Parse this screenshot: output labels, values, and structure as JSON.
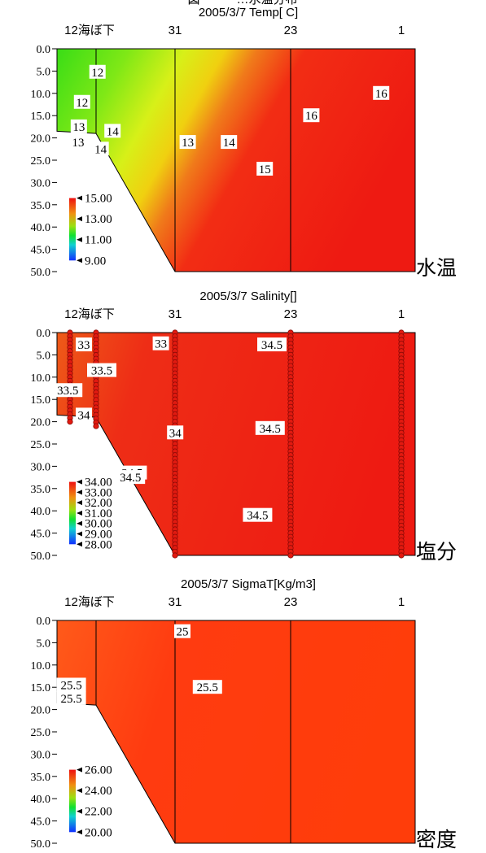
{
  "page_header": "図　　　…水温分布",
  "chart_data": [
    {
      "type": "heatmap",
      "title": "2005/3/7 Temp[ C]",
      "side_label": "水温",
      "stations": [
        "12海ぼ下",
        "31",
        "23",
        "1"
      ],
      "ylim": [
        0,
        50
      ],
      "yticks": [
        "0.0",
        "5.0",
        "10.0",
        "15.0",
        "20.0",
        "25.0",
        "30.0",
        "35.0",
        "40.0",
        "45.0",
        "50.0"
      ],
      "colorbar": [
        "15.00",
        "13.00",
        "11.00",
        "9.00"
      ],
      "contour_labels": [
        "12",
        "12",
        "13",
        "13",
        "14",
        "14",
        "13",
        "14",
        "15",
        "16",
        "16"
      ],
      "sample_markers": false
    },
    {
      "type": "heatmap",
      "title": "2005/3/7 Salinity[]",
      "side_label": "塩分",
      "stations": [
        "12海ぼ下",
        "31",
        "23",
        "1"
      ],
      "ylim": [
        0,
        50
      ],
      "yticks": [
        "0.0",
        "5.0",
        "10.0",
        "15.0",
        "20.0",
        "25.0",
        "30.0",
        "35.0",
        "40.0",
        "45.0",
        "50.0"
      ],
      "colorbar": [
        "34.00",
        "33.00",
        "32.00",
        "31.00",
        "30.00",
        "29.00",
        "28.00"
      ],
      "contour_labels": [
        "33",
        "33",
        "33.5",
        "33.5",
        "34",
        "34",
        "34.5",
        "34.5",
        "34.5",
        "34.5",
        "34.5"
      ],
      "sample_markers": true
    },
    {
      "type": "heatmap",
      "title": "2005/3/7 SigmaT[Kg/m3]",
      "side_label": "密度",
      "stations": [
        "12海ぼ下",
        "31",
        "23",
        "1"
      ],
      "ylim": [
        0,
        50
      ],
      "yticks": [
        "0.0",
        "5.0",
        "10.0",
        "15.0",
        "20.0",
        "25.0",
        "30.0",
        "35.0",
        "40.0",
        "45.0",
        "50.0"
      ],
      "colorbar": [
        "26.00",
        "24.00",
        "22.00",
        "20.00"
      ],
      "contour_labels": [
        "25",
        "25.5",
        "25.5",
        "25.5"
      ],
      "sample_markers": false
    }
  ]
}
